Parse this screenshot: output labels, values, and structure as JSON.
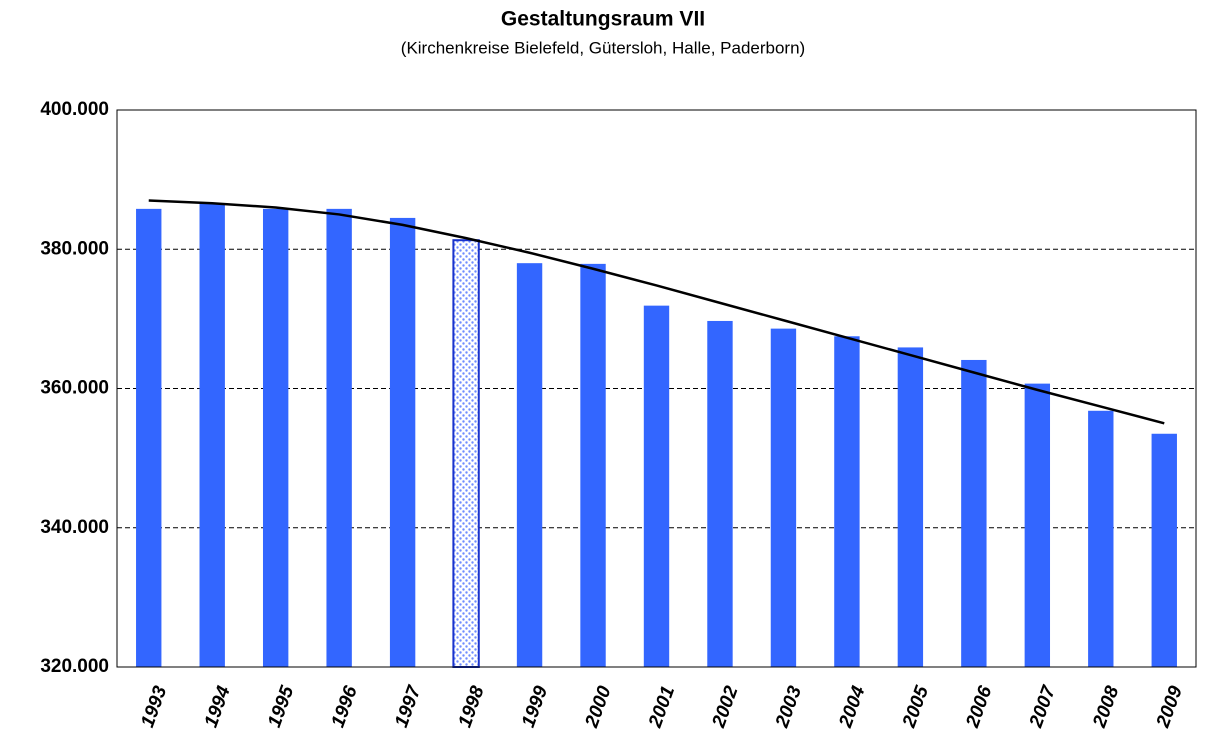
{
  "chart_data": {
    "type": "bar",
    "title": "Gestaltungsraum VII",
    "subtitle": "(Kirchenkreise Bielefeld, Gütersloh, Halle, Paderborn)",
    "categories": [
      "1993",
      "1994",
      "1995",
      "1996",
      "1997",
      "1998",
      "1999",
      "2000",
      "2001",
      "2002",
      "2003",
      "2004",
      "2005",
      "2006",
      "2007",
      "2008",
      "2009"
    ],
    "values": [
      385800,
      386500,
      385800,
      385800,
      384500,
      381300,
      378000,
      377900,
      371900,
      369700,
      368600,
      367500,
      365900,
      364100,
      360700,
      356800,
      353500
    ],
    "color": "#3366ff",
    "patterned_index": 5,
    "trend": {
      "color": "#000000",
      "values": [
        387000,
        386600,
        386000,
        385000,
        383500,
        381600,
        379500,
        377200,
        374800,
        372300,
        369800,
        367300,
        364800,
        362300,
        359800,
        357400,
        355000
      ]
    },
    "ylim": [
      320000,
      400000
    ],
    "yticks": [
      {
        "value": 320000,
        "label": "320.000"
      },
      {
        "value": 340000,
        "label": "340.000"
      },
      {
        "value": 360000,
        "label": "360.000"
      },
      {
        "value": 380000,
        "label": "380.000"
      },
      {
        "value": 400000,
        "label": "400.000"
      }
    ],
    "grid": true
  }
}
